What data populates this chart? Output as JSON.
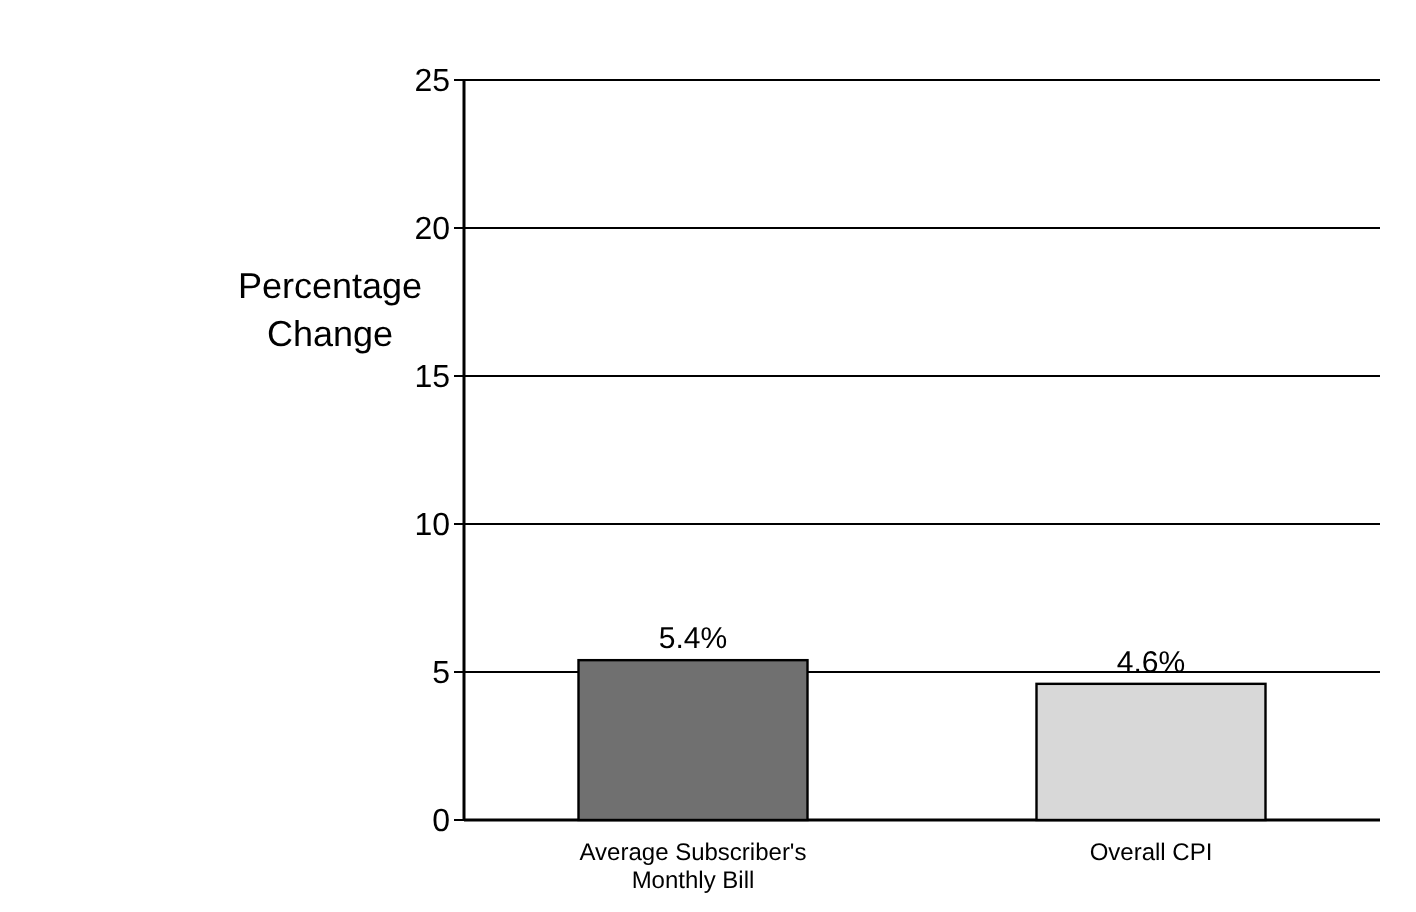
{
  "chart_data": {
    "type": "bar",
    "ylabel": "Percentage Change",
    "categories": [
      "Average Subscriber's Monthly Bill",
      "Overall CPI"
    ],
    "values": [
      5.4,
      4.6
    ],
    "colors": [
      "#707070",
      "#d8d8d8"
    ],
    "value_labels": [
      "5.4%",
      "4.6%"
    ],
    "ylim": [
      0,
      25
    ],
    "yticks": [
      0,
      5,
      10,
      15,
      20,
      25
    ],
    "grid": "y"
  }
}
